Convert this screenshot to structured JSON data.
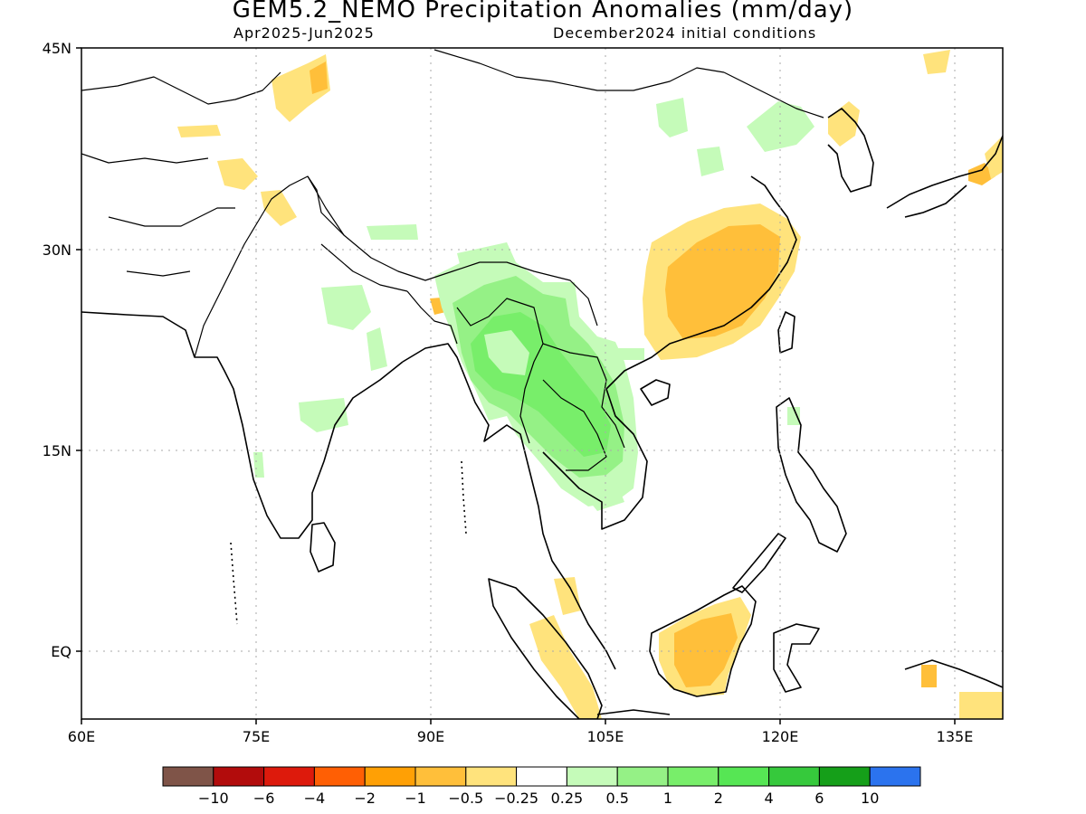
{
  "title": "GEM5.2_NEMO Precipitation Anomalies (mm/day)",
  "period": "Apr2025-Jun2025",
  "init": "December2024 initial conditions",
  "map": {
    "lon_range": [
      60,
      140
    ],
    "lat_range": [
      -6,
      45
    ],
    "x_ticks": [
      "60E",
      "75E",
      "90E",
      "105E",
      "120E",
      "135E"
    ],
    "y_ticks": [
      "45N",
      "30N",
      "15N",
      "EQ"
    ],
    "grid": "dotted"
  },
  "colorbar": {
    "colors": [
      "#7f5448",
      "#b20c0c",
      "#dd1a0c",
      "#ff5f04",
      "#ffa005",
      "#ffbf3a",
      "#ffe37c",
      "#ffffff",
      "#c5fbb9",
      "#95f186",
      "#78ee6a",
      "#56e654",
      "#36c93c",
      "#159f19",
      "#2b73ee"
    ],
    "labels": [
      "-10",
      "-6",
      "-4",
      "-2",
      "-1",
      "-0.5",
      "-0.25",
      "0.25",
      "0.5",
      "1",
      "2",
      "4",
      "6",
      "10"
    ]
  },
  "anomaly_regions": [
    {
      "name": "southeast-china-dry",
      "category": "-0.25 to -0.5",
      "color": "#ffe37c"
    },
    {
      "name": "southeast-china-dry-core",
      "category": "-0.5 to -1",
      "color": "#ffbf3a"
    },
    {
      "name": "indochina-wet",
      "category": "0.5 to 1",
      "color": "#95f186"
    },
    {
      "name": "indochina-wet-core",
      "category": "1 to 2",
      "color": "#78ee6a"
    },
    {
      "name": "borneo-dry",
      "category": "-0.25 to -0.5",
      "color": "#ffe37c"
    },
    {
      "name": "borneo-dry-core",
      "category": "-0.5 to -1",
      "color": "#ffbf3a"
    },
    {
      "name": "india-wet",
      "category": "0.25 to 0.5",
      "color": "#c5fbb9"
    }
  ]
}
